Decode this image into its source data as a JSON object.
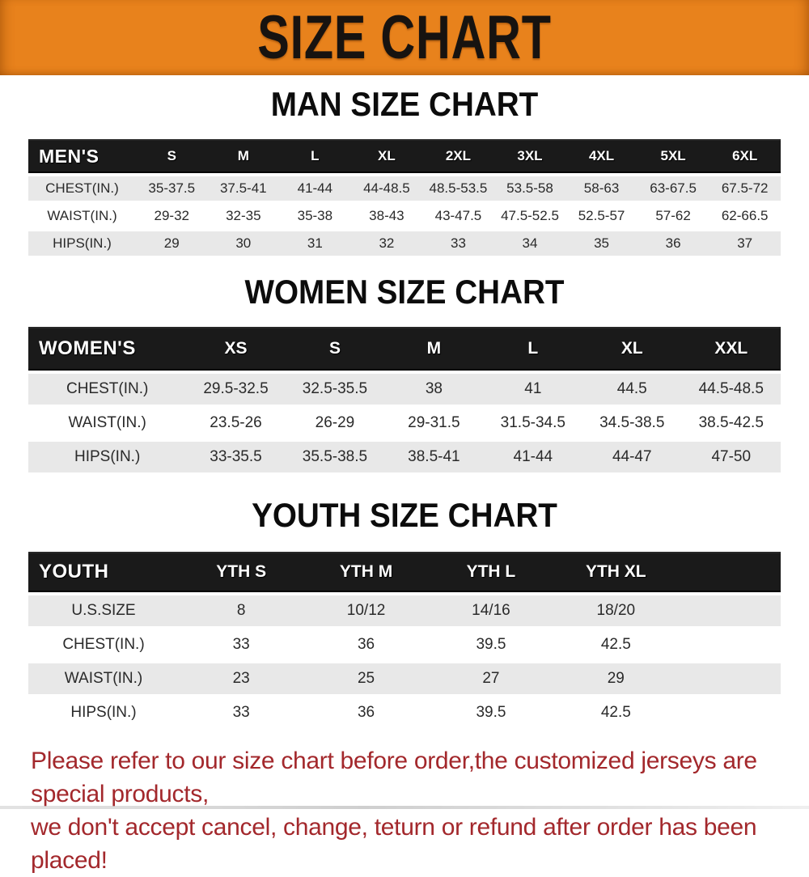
{
  "banner": {
    "title": "SIZE CHART"
  },
  "colors": {
    "banner_bg": "#E8821C",
    "table_header_bg": "#1A1A1A",
    "alt_row_bg": "#E8E8E8",
    "note_text": "#A3282C"
  },
  "chart_data": [
    {
      "type": "table",
      "title": "MAN SIZE CHART",
      "corner_label": "MEN'S",
      "columns": [
        "S",
        "M",
        "L",
        "XL",
        "2XL",
        "3XL",
        "4XL",
        "5XL",
        "6XL"
      ],
      "rows": [
        {
          "label": "CHEST(IN.)",
          "values": [
            "35-37.5",
            "37.5-41",
            "41-44",
            "44-48.5",
            "48.5-53.5",
            "53.5-58",
            "58-63",
            "63-67.5",
            "67.5-72"
          ]
        },
        {
          "label": "WAIST(IN.)",
          "values": [
            "29-32",
            "32-35",
            "35-38",
            "38-43",
            "43-47.5",
            "47.5-52.5",
            "52.5-57",
            "57-62",
            "62-66.5"
          ]
        },
        {
          "label": "HIPS(IN.)",
          "values": [
            "29",
            "30",
            "31",
            "32",
            "33",
            "34",
            "35",
            "36",
            "37"
          ]
        }
      ]
    },
    {
      "type": "table",
      "title": "WOMEN SIZE CHART",
      "corner_label": "WOMEN'S",
      "columns": [
        "XS",
        "S",
        "M",
        "L",
        "XL",
        "XXL"
      ],
      "rows": [
        {
          "label": "CHEST(IN.)",
          "values": [
            "29.5-32.5",
            "32.5-35.5",
            "38",
            "41",
            "44.5",
            "44.5-48.5"
          ]
        },
        {
          "label": "WAIST(IN.)",
          "values": [
            "23.5-26",
            "26-29",
            "29-31.5",
            "31.5-34.5",
            "34.5-38.5",
            "38.5-42.5"
          ]
        },
        {
          "label": "HIPS(IN.)",
          "values": [
            "33-35.5",
            "35.5-38.5",
            "38.5-41",
            "41-44",
            "44-47",
            "47-50"
          ]
        }
      ]
    },
    {
      "type": "table",
      "title": "YOUTH SIZE CHART",
      "corner_label": "YOUTH",
      "columns": [
        "YTH S",
        "YTH M",
        "YTH L",
        "YTH XL"
      ],
      "rows": [
        {
          "label": "U.S.SIZE",
          "values": [
            "8",
            "10/12",
            "14/16",
            "18/20"
          ]
        },
        {
          "label": "CHEST(IN.)",
          "values": [
            "33",
            "36",
            "39.5",
            "42.5"
          ]
        },
        {
          "label": "WAIST(IN.)",
          "values": [
            "23",
            "25",
            "27",
            "29"
          ]
        },
        {
          "label": "HIPS(IN.)",
          "values": [
            "33",
            "36",
            "39.5",
            "42.5"
          ]
        }
      ]
    }
  ],
  "note": {
    "line1": "Please refer to our size chart before order,the customized jerseys are special products,",
    "line2": "we don't accept cancel, change, teturn or refund after order has been placed!"
  }
}
